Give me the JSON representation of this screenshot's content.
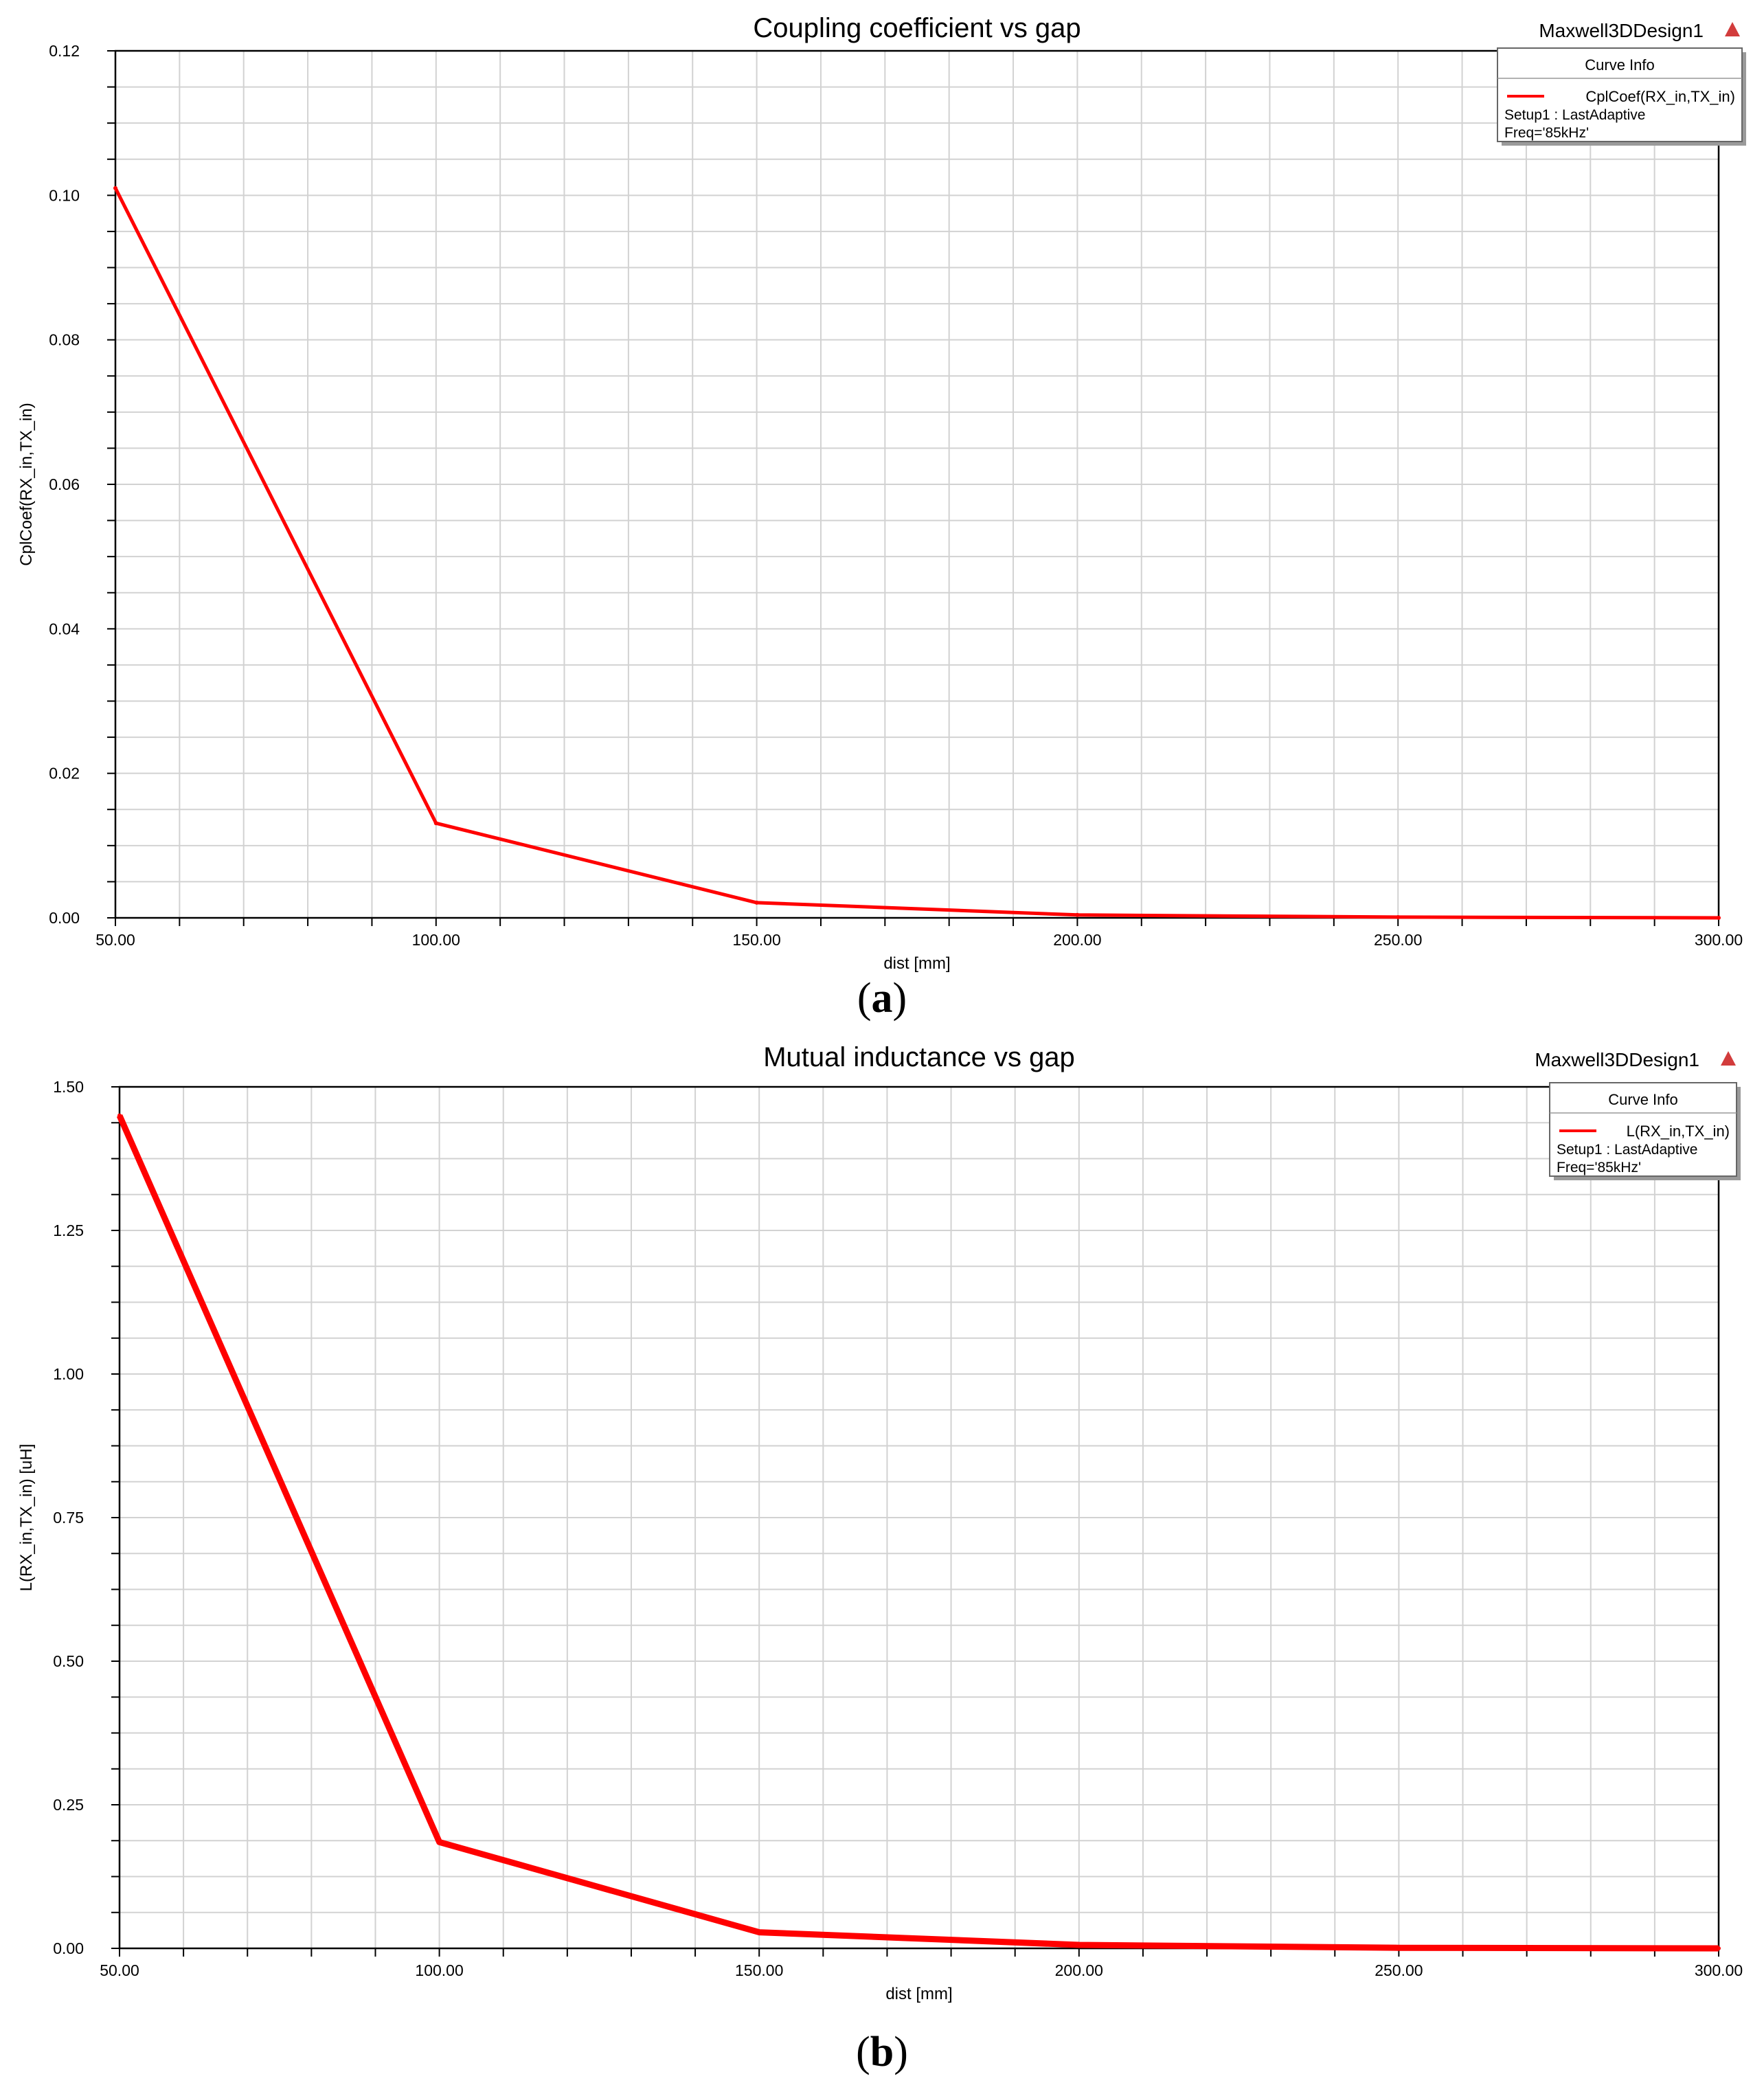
{
  "panels": [
    {
      "id": "a",
      "caption_letter": "a",
      "design_name": "Maxwell3DDesign1",
      "curve_info_title": "Curve Info",
      "legend_lines": [
        "Setup1 : LastAdaptive",
        "Freq='85kHz'"
      ],
      "chart_data": {
        "type": "line",
        "title": "Coupling coefficient vs gap",
        "xlabel": "dist [mm]",
        "ylabel": "CplCoef(RX_in,TX_in)",
        "xlim": [
          50,
          300
        ],
        "ylim": [
          0,
          0.12
        ],
        "xticks": [
          50,
          100,
          150,
          200,
          250,
          300
        ],
        "xtick_labels": [
          "50.00",
          "100.00",
          "150.00",
          "200.00",
          "250.00",
          "300.00"
        ],
        "yticks": [
          0,
          0.02,
          0.04,
          0.06,
          0.08,
          0.1,
          0.12
        ],
        "ytick_labels": [
          "0.00",
          "0.02",
          "0.04",
          "0.06",
          "0.08",
          "0.10",
          "0.12"
        ],
        "grid": true,
        "legend_position": "top-right",
        "series": [
          {
            "name": "CplCoef(RX_in,TX_in)",
            "color": "#ff0000",
            "x": [
              50,
              100,
              150,
              200,
              250,
              300
            ],
            "y": [
              0.101,
              0.0131,
              0.0021,
              0.0004,
              0.0001,
              0.0
            ]
          }
        ]
      }
    },
    {
      "id": "b",
      "caption_letter": "b",
      "design_name": "Maxwell3DDesign1",
      "curve_info_title": "Curve Info",
      "legend_lines": [
        "Setup1 : LastAdaptive",
        "Freq='85kHz'"
      ],
      "chart_data": {
        "type": "line",
        "title": "Mutual inductance vs gap",
        "xlabel": "dist [mm]",
        "ylabel": "L(RX_in,TX_in) [uH]",
        "xlim": [
          50,
          300
        ],
        "ylim": [
          0,
          1.5
        ],
        "xticks": [
          50,
          100,
          150,
          200,
          250,
          300
        ],
        "xtick_labels": [
          "50.00",
          "100.00",
          "150.00",
          "200.00",
          "250.00",
          "300.00"
        ],
        "yticks": [
          0,
          0.25,
          0.5,
          0.75,
          1.0,
          1.25,
          1.5
        ],
        "ytick_labels": [
          "0.00",
          "0.25",
          "0.50",
          "0.75",
          "1.00",
          "1.25",
          "1.50"
        ],
        "grid": true,
        "legend_position": "top-right",
        "series": [
          {
            "name": "L(RX_in,TX_in)",
            "color": "#ff0000",
            "x": [
              50,
              100,
              150,
              200,
              250,
              300
            ],
            "y": [
              1.45,
              0.185,
              0.028,
              0.006,
              0.001,
              0.0
            ]
          }
        ]
      }
    }
  ]
}
